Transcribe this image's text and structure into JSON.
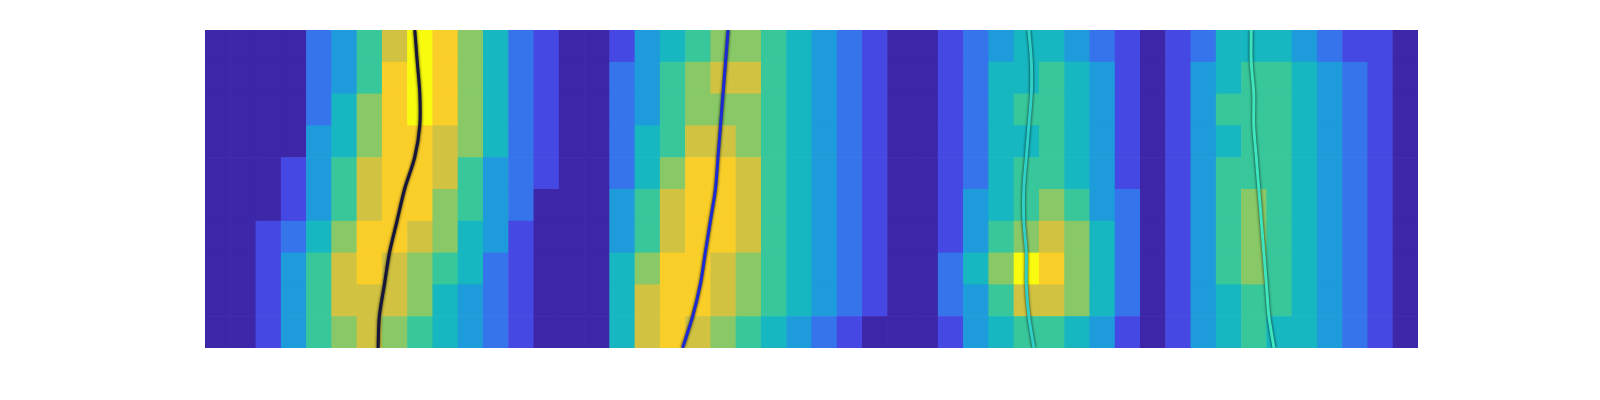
{
  "chart_data": {
    "type": "heatmap",
    "xlim": [
      0,
      48
    ],
    "ylim": [
      0,
      10
    ],
    "zlim": [
      0,
      9
    ],
    "grid": false,
    "tick_labels": false,
    "cells": [
      [
        0,
        0,
        0,
        0,
        2,
        3,
        5,
        7,
        9,
        8,
        6,
        4,
        2,
        1,
        0,
        0,
        1,
        3,
        4,
        5,
        6,
        6,
        5,
        4,
        3,
        2,
        1,
        0,
        0,
        1,
        2,
        3,
        4,
        4,
        3,
        2,
        1,
        0,
        1,
        2,
        4,
        4,
        4,
        3,
        2,
        1,
        1,
        0
      ],
      [
        0,
        0,
        0,
        0,
        2,
        3,
        5,
        8,
        9,
        8,
        6,
        4,
        2,
        1,
        0,
        0,
        2,
        3,
        5,
        6,
        7,
        7,
        5,
        4,
        3,
        2,
        1,
        0,
        0,
        1,
        2,
        4,
        4,
        5,
        4,
        3,
        1,
        0,
        1,
        3,
        4,
        5,
        5,
        4,
        3,
        2,
        1,
        0
      ],
      [
        0,
        0,
        0,
        0,
        2,
        4,
        6,
        8,
        9,
        8,
        6,
        4,
        2,
        1,
        0,
        0,
        2,
        3,
        5,
        6,
        6,
        6,
        5,
        4,
        3,
        2,
        1,
        0,
        0,
        1,
        2,
        4,
        5,
        5,
        4,
        3,
        1,
        0,
        1,
        3,
        5,
        5,
        5,
        4,
        3,
        2,
        1,
        0
      ],
      [
        0,
        0,
        0,
        0,
        3,
        4,
        6,
        8,
        8,
        7,
        6,
        4,
        2,
        1,
        0,
        0,
        2,
        4,
        5,
        7,
        7,
        6,
        5,
        4,
        3,
        2,
        1,
        0,
        0,
        1,
        2,
        4,
        4,
        5,
        4,
        3,
        1,
        0,
        1,
        3,
        4,
        5,
        5,
        4,
        3,
        2,
        1,
        0
      ],
      [
        0,
        0,
        0,
        1,
        3,
        5,
        7,
        8,
        8,
        7,
        5,
        3,
        2,
        1,
        0,
        0,
        2,
        4,
        6,
        8,
        8,
        7,
        5,
        4,
        3,
        2,
        1,
        0,
        0,
        1,
        2,
        4,
        5,
        5,
        4,
        3,
        1,
        0,
        1,
        3,
        5,
        5,
        5,
        4,
        3,
        2,
        1,
        0
      ],
      [
        0,
        0,
        0,
        1,
        3,
        5,
        7,
        8,
        8,
        6,
        5,
        3,
        2,
        0,
        0,
        0,
        3,
        5,
        7,
        8,
        8,
        7,
        5,
        4,
        3,
        2,
        1,
        0,
        0,
        1,
        3,
        4,
        5,
        6,
        5,
        3,
        2,
        0,
        1,
        3,
        5,
        6,
        5,
        4,
        3,
        2,
        1,
        0
      ],
      [
        0,
        0,
        1,
        2,
        4,
        6,
        8,
        8,
        7,
        6,
        4,
        3,
        1,
        0,
        0,
        0,
        3,
        5,
        7,
        8,
        8,
        7,
        5,
        4,
        3,
        2,
        1,
        0,
        0,
        1,
        3,
        5,
        6,
        7,
        6,
        4,
        2,
        0,
        1,
        3,
        5,
        6,
        5,
        4,
        3,
        2,
        1,
        0
      ],
      [
        0,
        0,
        1,
        3,
        5,
        7,
        8,
        7,
        6,
        5,
        4,
        2,
        1,
        0,
        0,
        0,
        4,
        6,
        8,
        8,
        7,
        6,
        5,
        4,
        3,
        2,
        1,
        0,
        0,
        2,
        4,
        6,
        9,
        8,
        6,
        4,
        2,
        0,
        1,
        3,
        5,
        6,
        5,
        4,
        3,
        2,
        1,
        0
      ],
      [
        0,
        0,
        1,
        3,
        5,
        7,
        7,
        7,
        6,
        4,
        3,
        2,
        1,
        0,
        0,
        0,
        4,
        7,
        8,
        8,
        7,
        6,
        5,
        4,
        3,
        2,
        1,
        0,
        0,
        2,
        3,
        5,
        7,
        7,
        6,
        4,
        2,
        0,
        1,
        3,
        4,
        5,
        5,
        4,
        3,
        2,
        1,
        0
      ],
      [
        0,
        0,
        1,
        3,
        5,
        6,
        7,
        6,
        5,
        4,
        3,
        2,
        1,
        0,
        0,
        0,
        4,
        7,
        8,
        7,
        6,
        5,
        4,
        3,
        2,
        1,
        0,
        0,
        0,
        1,
        3,
        4,
        5,
        5,
        4,
        3,
        1,
        0,
        1,
        3,
        4,
        5,
        4,
        4,
        3,
        2,
        1,
        0
      ]
    ],
    "series": [
      {
        "color": "#16163a",
        "line_style": "solid",
        "x": [
          8.3,
          8.4,
          8.5,
          8.5,
          8.3,
          7.9,
          7.6,
          7.3,
          7.1,
          6.9,
          6.85
        ],
        "y": [
          0,
          1,
          2,
          3,
          4,
          5,
          6,
          7,
          8,
          9,
          10
        ]
      },
      {
        "color": "#1c2bd6",
        "line_style": "solid",
        "x": [
          20.7,
          20.6,
          20.5,
          20.4,
          20.3,
          20.2,
          20.0,
          19.8,
          19.6,
          19.3,
          18.9
        ],
        "y": [
          0,
          1,
          2,
          3,
          4,
          5,
          6,
          7,
          8,
          9,
          10
        ]
      },
      {
        "color": "#2fd0c8",
        "line_style": "solid",
        "x": [
          32.6,
          32.7,
          32.7,
          32.6,
          32.5,
          32.4,
          32.4,
          32.5,
          32.5,
          32.6,
          32.8
        ],
        "y": [
          0,
          1,
          2,
          3,
          4,
          5,
          6,
          7,
          8,
          9,
          10
        ]
      },
      {
        "color": "#3ee6c0",
        "line_style": "solid",
        "x": [
          41.4,
          41.4,
          41.5,
          41.5,
          41.6,
          41.7,
          41.8,
          41.9,
          42.0,
          42.1,
          42.3
        ],
        "y": [
          0,
          1,
          2,
          3,
          4,
          5,
          6,
          7,
          8,
          9,
          10
        ]
      }
    ]
  }
}
